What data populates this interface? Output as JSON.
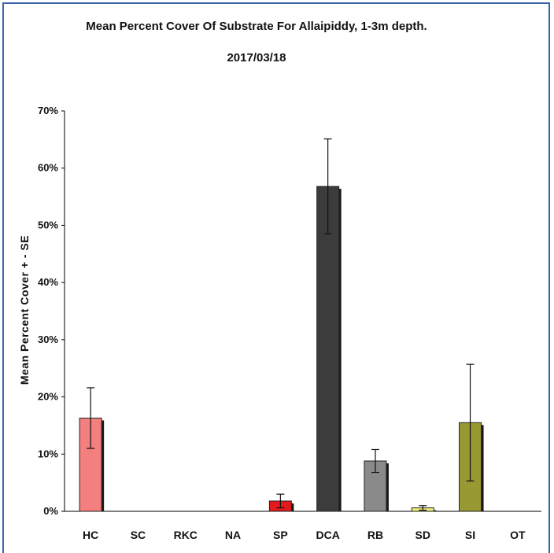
{
  "chart_data": {
    "type": "bar",
    "title": "Mean Percent Cover Of Substrate For Allaipiddy, 1-3m depth.",
    "subtitle": "2017/03/18",
    "xlabel": "",
    "ylabel": "Mean Percent Cover + - SE",
    "ylim": [
      0,
      70
    ],
    "yticks": [
      "0%",
      "10%",
      "20%",
      "30%",
      "40%",
      "50%",
      "60%",
      "70%"
    ],
    "categories": [
      "HC",
      "SC",
      "RKC",
      "NA",
      "SP",
      "DCA",
      "RB",
      "SD",
      "SI",
      "OT"
    ],
    "values": [
      16.3,
      0,
      0,
      0,
      1.8,
      56.8,
      8.8,
      0.6,
      15.5,
      0
    ],
    "errors": [
      5.3,
      0,
      0,
      0,
      1.2,
      8.3,
      2.0,
      0.4,
      10.2,
      0
    ],
    "colors": [
      "#f47f7f",
      "#ffffff",
      "#ffffff",
      "#ffffff",
      "#e31a1c",
      "#3c3c3c",
      "#8a8a8a",
      "#f0f07a",
      "#999933",
      "#ffffff"
    ],
    "grid": false,
    "legend": "none"
  }
}
